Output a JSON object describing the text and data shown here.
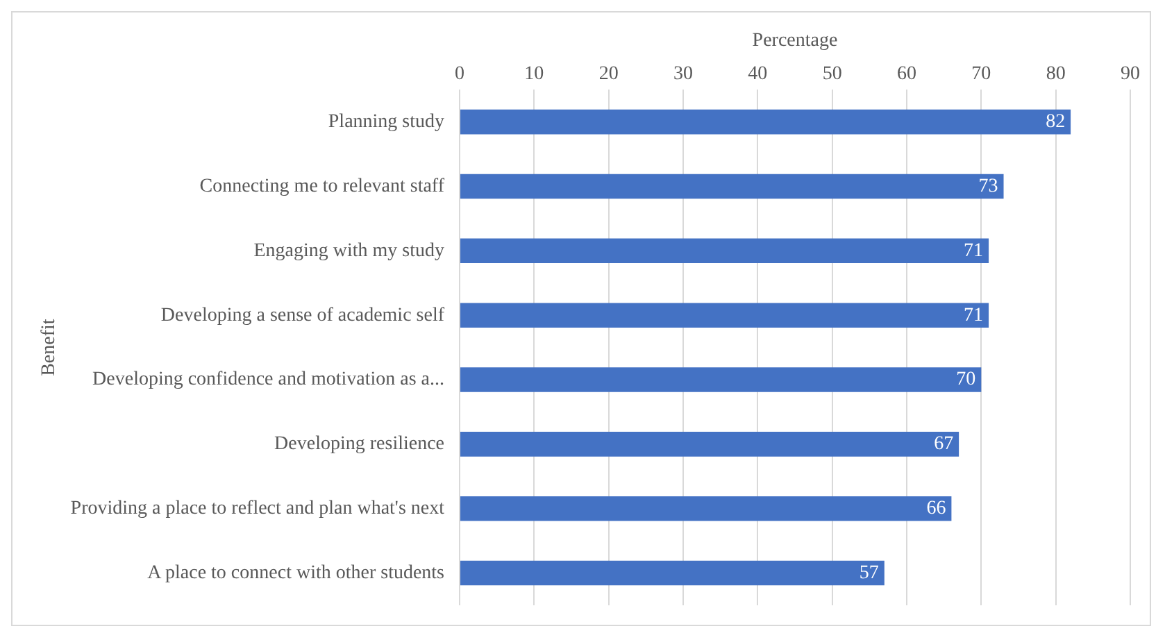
{
  "chart_data": {
    "type": "bar",
    "orientation": "horizontal",
    "xlabel": "Percentage",
    "ylabel": "Benefit",
    "categories": [
      "Planning study",
      "Connecting me to relevant staff",
      "Engaging with my study",
      "Developing a sense of academic self",
      "Developing confidence and motivation as a...",
      "Developing resilience",
      "Providing a place to reflect and plan what's next",
      "A place to connect with other students"
    ],
    "values": [
      82,
      73,
      71,
      71,
      70,
      67,
      66,
      57
    ],
    "color": "#4472c4",
    "xlim": [
      0,
      90
    ],
    "xticks": [
      0,
      10,
      20,
      30,
      40,
      50,
      60,
      70,
      80,
      90
    ],
    "grid": "x",
    "data_labels": true,
    "legend": false
  }
}
